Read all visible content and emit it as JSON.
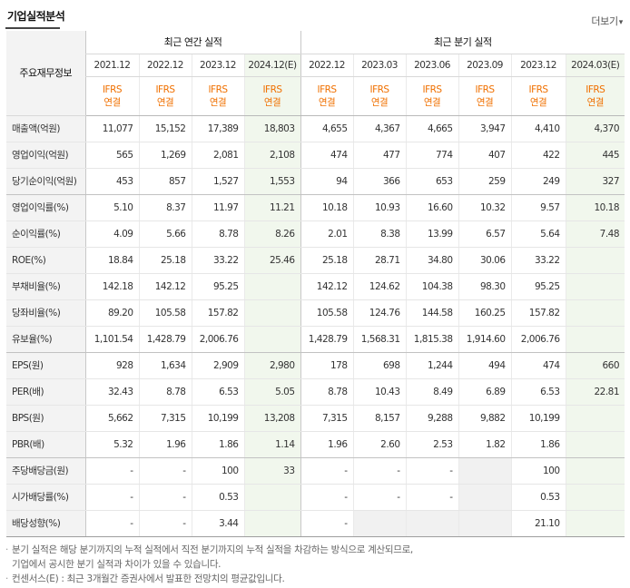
{
  "title": "기업실적분석",
  "more": {
    "label": "더보기",
    "icon": "chevron-down-icon"
  },
  "header": {
    "label_col": "주요재무정보",
    "annual_group": "최근 연간 실적",
    "quarter_group": "최근 분기 실적",
    "annual_periods": [
      "2021.12",
      "2022.12",
      "2023.12",
      "2024.12(E)"
    ],
    "quarter_periods": [
      "2022.12",
      "2023.03",
      "2023.06",
      "2023.09",
      "2023.12",
      "2024.03(E)"
    ],
    "accounting_line1": "IFRS",
    "accounting_line2": "연결"
  },
  "rows": [
    {
      "label": "매출액(억원)",
      "annual": [
        "11,077",
        "15,152",
        "17,389",
        "18,803"
      ],
      "quarter": [
        "4,655",
        "4,367",
        "4,665",
        "3,947",
        "4,410",
        "4,370"
      ]
    },
    {
      "label": "영업이익(억원)",
      "annual": [
        "565",
        "1,269",
        "2,081",
        "2,108"
      ],
      "quarter": [
        "474",
        "477",
        "774",
        "407",
        "422",
        "445"
      ]
    },
    {
      "label": "당기순이익(억원)",
      "annual": [
        "453",
        "857",
        "1,527",
        "1,553"
      ],
      "quarter": [
        "94",
        "366",
        "653",
        "259",
        "249",
        "327"
      ]
    },
    {
      "label": "영업이익률(%)",
      "annual": [
        "5.10",
        "8.37",
        "11.97",
        "11.21"
      ],
      "quarter": [
        "10.18",
        "10.93",
        "16.60",
        "10.32",
        "9.57",
        "10.18"
      ]
    },
    {
      "label": "순이익률(%)",
      "annual": [
        "4.09",
        "5.66",
        "8.78",
        "8.26"
      ],
      "quarter": [
        "2.01",
        "8.38",
        "13.99",
        "6.57",
        "5.64",
        "7.48"
      ]
    },
    {
      "label": "ROE(%)",
      "annual": [
        "18.84",
        "25.18",
        "33.22",
        "25.46"
      ],
      "quarter": [
        "25.18",
        "28.71",
        "34.80",
        "30.06",
        "33.22",
        ""
      ]
    },
    {
      "label": "부채비율(%)",
      "annual": [
        "142.18",
        "142.12",
        "95.25",
        ""
      ],
      "quarter": [
        "142.12",
        "124.62",
        "104.38",
        "98.30",
        "95.25",
        ""
      ]
    },
    {
      "label": "당좌비율(%)",
      "annual": [
        "89.20",
        "105.58",
        "157.82",
        ""
      ],
      "quarter": [
        "105.58",
        "124.76",
        "144.58",
        "160.25",
        "157.82",
        ""
      ]
    },
    {
      "label": "유보율(%)",
      "annual": [
        "1,101.54",
        "1,428.79",
        "2,006.76",
        ""
      ],
      "quarter": [
        "1,428.79",
        "1,568.31",
        "1,815.38",
        "1,914.60",
        "2,006.76",
        ""
      ]
    },
    {
      "label": "EPS(원)",
      "annual": [
        "928",
        "1,634",
        "2,909",
        "2,980"
      ],
      "quarter": [
        "178",
        "698",
        "1,244",
        "494",
        "474",
        "660"
      ]
    },
    {
      "label": "PER(배)",
      "annual": [
        "32.43",
        "8.78",
        "6.53",
        "5.05"
      ],
      "quarter": [
        "8.78",
        "10.43",
        "8.49",
        "6.89",
        "6.53",
        "22.81"
      ]
    },
    {
      "label": "BPS(원)",
      "annual": [
        "5,662",
        "7,315",
        "10,199",
        "13,208"
      ],
      "quarter": [
        "7,315",
        "8,157",
        "9,288",
        "9,882",
        "10,199",
        ""
      ]
    },
    {
      "label": "PBR(배)",
      "annual": [
        "5.32",
        "1.96",
        "1.86",
        "1.14"
      ],
      "quarter": [
        "1.96",
        "2.60",
        "2.53",
        "1.82",
        "1.86",
        ""
      ]
    },
    {
      "label": "주당배당금(원)",
      "annual": [
        "-",
        "-",
        "100",
        "33"
      ],
      "quarter": [
        "-",
        "-",
        "-",
        "",
        "100",
        ""
      ]
    },
    {
      "label": "시가배당률(%)",
      "annual": [
        "-",
        "-",
        "0.53",
        ""
      ],
      "quarter": [
        "-",
        "-",
        "-",
        "",
        "0.53",
        ""
      ]
    },
    {
      "label": "배당성향(%)",
      "annual": [
        "-",
        "-",
        "3.44",
        ""
      ],
      "quarter": [
        "-",
        "",
        "",
        "",
        "21.10",
        ""
      ]
    }
  ],
  "notes": [
    "분기 실적은 해당 분기까지의 누적 실적에서 직전 분기까지의 누적 실적을 차감하는 방식으로 계산되므로,",
    "기업에서 공시한 분기 실적과 차이가 있을 수 있습니다.",
    "컨센서스(E) : 최근 3개월간 증권사에서 발표한 전망치의 평균값입니다."
  ],
  "colors": {
    "accent": "#f07000",
    "estimate_bg": "#f1f7ed",
    "label_bg": "#f3f3f3"
  }
}
